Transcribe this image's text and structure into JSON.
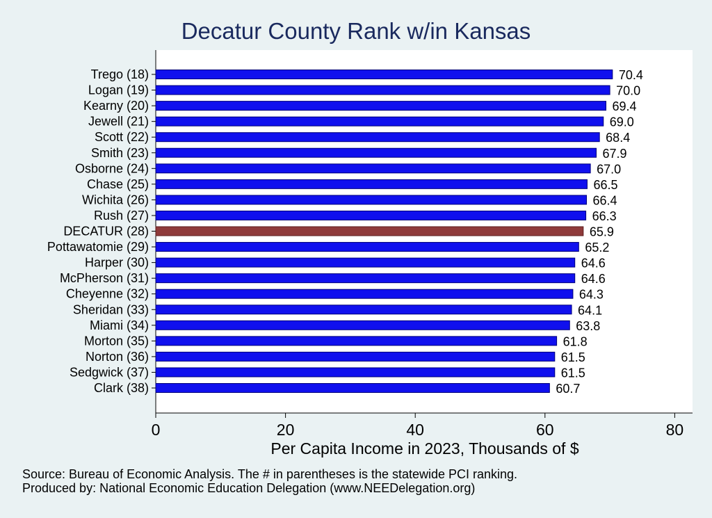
{
  "chart_data": {
    "type": "bar",
    "orientation": "horizontal",
    "title": "Decatur County Rank w/in Kansas",
    "xlabel": "Per Capita Income in 2023, Thousands of $",
    "ylabel": "",
    "xlim": [
      0,
      83
    ],
    "xticks": [
      0,
      20,
      40,
      60,
      80
    ],
    "categories": [
      "Trego (18)",
      "Logan (19)",
      "Kearny (20)",
      "Jewell (21)",
      "Scott (22)",
      "Smith (23)",
      "Osborne (24)",
      "Chase (25)",
      "Wichita (26)",
      "Rush (27)",
      "DECATUR (28)",
      "Pottawatomie (29)",
      "Harper (30)",
      "McPherson (31)",
      "Cheyenne (32)",
      "Sheridan (33)",
      "Miami (34)",
      "Morton (35)",
      "Norton (36)",
      "Sedgwick (37)",
      "Clark (38)"
    ],
    "values": [
      70.4,
      70.0,
      69.4,
      69.0,
      68.4,
      67.9,
      67.0,
      66.5,
      66.4,
      66.3,
      65.9,
      65.2,
      64.6,
      64.6,
      64.3,
      64.1,
      63.8,
      61.8,
      61.5,
      61.5,
      60.7
    ],
    "value_labels": [
      "70.4",
      "70.0",
      "69.4",
      "69.0",
      "68.4",
      "67.9",
      "67.0",
      "66.5",
      "66.4",
      "66.3",
      "65.9",
      "65.2",
      "64.6",
      "64.6",
      "64.3",
      "64.1",
      "63.8",
      "61.8",
      "61.5",
      "61.5",
      "60.7"
    ],
    "highlight_index": 10,
    "colors": {
      "bar": "#1010ee",
      "highlight": "#8f3a3a",
      "background": "#eaf2f3",
      "plot_bg": "#ffffff",
      "title": "#1a2a5e"
    },
    "grid": false
  },
  "footnotes": {
    "source": "Source: Bureau of Economic Analysis. The # in parentheses is the statewide PCI ranking.",
    "producer": "Produced by: National Economic Education Delegation (www.NEEDelegation.org)"
  }
}
